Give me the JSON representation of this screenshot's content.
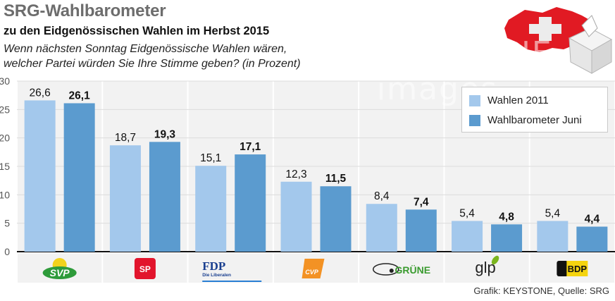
{
  "header": {
    "title": "SRG-Wahlbarometer",
    "subtitle": "zu den Eidgenössischen Wahlen im Herbst 2015",
    "question_line1": "Wenn nächsten Sonntag Eidgenössische Wahlen wären,",
    "question_line2": "welcher Partei würden Sie Ihre Stimme geben? (in Prozent)"
  },
  "legend": {
    "items": [
      {
        "label": "Wahlen 2011",
        "color": "#a3c8ec"
      },
      {
        "label": "Wahlbarometer Juni",
        "color": "#5b9bcf"
      }
    ]
  },
  "footer": {
    "source": "Grafik: KEYSTONE, Quelle: SRG"
  },
  "watermark": {
    "text": "KEYSTONE images"
  },
  "icons": {
    "header_graphic": "swiss-map-ballot-box-icon"
  },
  "chart_data": {
    "type": "bar",
    "title": "SRG-Wahlbarometer",
    "xlabel": "",
    "ylabel": "Prozent",
    "ylim": [
      0,
      30
    ],
    "yticks": [
      0,
      5,
      10,
      15,
      20,
      25,
      30
    ],
    "grid": true,
    "legend_position": "top-right",
    "categories": [
      "SVP",
      "SP",
      "FDP",
      "CVP",
      "GRÜNE",
      "glp",
      "BDP"
    ],
    "category_logos": [
      {
        "text": "SVP",
        "sub": "",
        "color": "#2e9b3a",
        "accent": "#f2d21b"
      },
      {
        "text": "SP",
        "sub": "",
        "color": "#e2142c",
        "accent": "#ffffff"
      },
      {
        "text": "FDP",
        "sub": "Die Liberalen",
        "color": "#1a3f8f",
        "accent": "#2a7fd4"
      },
      {
        "text": "CVP",
        "sub": "",
        "color": "#f39224",
        "accent": "#ffffff"
      },
      {
        "text": "GRÜNE",
        "sub": "",
        "color": "#3a9b2f",
        "accent": "#222222"
      },
      {
        "text": "glp",
        "sub": "",
        "color": "#222222",
        "accent": "#7ab51d"
      },
      {
        "text": "BDP",
        "sub": "",
        "color": "#f5d40f",
        "accent": "#111111"
      }
    ],
    "series": [
      {
        "name": "Wahlen 2011",
        "color": "#a3c8ec",
        "values": [
          26.6,
          18.7,
          15.1,
          12.3,
          8.4,
          5.4,
          5.4
        ],
        "labels": [
          "26,6",
          "18,7",
          "15,1",
          "12,3",
          "8,4",
          "5,4",
          "5,4"
        ],
        "bold_labels": false
      },
      {
        "name": "Wahlbarometer Juni",
        "color": "#5b9bcf",
        "values": [
          26.1,
          19.3,
          17.1,
          11.5,
          7.4,
          4.8,
          4.4
        ],
        "labels": [
          "26,1",
          "19,3",
          "17,1",
          "11,5",
          "7,4",
          "4,8",
          "4,4"
        ],
        "bold_labels": true
      }
    ]
  }
}
